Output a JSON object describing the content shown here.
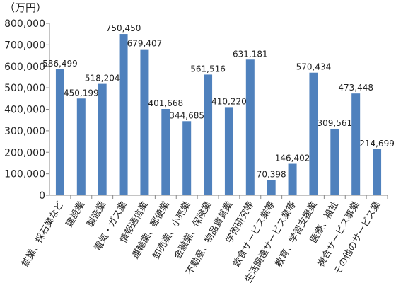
{
  "chart_data": {
    "type": "bar",
    "unit_label": "（万円）",
    "categories": [
      "鉱業、採石業など",
      "建設業",
      "製造業",
      "電気・ガス業",
      "情報通信業",
      "運輸業、郵便業",
      "卸売業、小売業",
      "金融業、保険業",
      "不動産、物品賃貸業",
      "学術研究等",
      "飲食サービス業等",
      "生活関連サービス業等",
      "教育、学習支援業",
      "医療、福祉",
      "複合サービス事業",
      "その他のサービス業"
    ],
    "values": [
      586499,
      450199,
      518204,
      750450,
      679407,
      401668,
      344685,
      561516,
      410220,
      631181,
      70398,
      146402,
      570434,
      309561,
      473448,
      214699
    ],
    "value_labels": [
      "586,499",
      "450,199",
      "518,204",
      "750,450",
      "679,407",
      "401,668",
      "344,685",
      "561,516",
      "410,220",
      "631,181",
      "70,398",
      "146,402",
      "570,434",
      "309,561",
      "473,448",
      "214,699"
    ],
    "y_ticks": [
      0,
      100000,
      200000,
      300000,
      400000,
      500000,
      600000,
      700000,
      800000
    ],
    "y_tick_labels": [
      "0",
      "100,000",
      "200,000",
      "300,000",
      "400,000",
      "500,000",
      "600,000",
      "700,000",
      "800,000"
    ],
    "ylim": [
      0,
      800000
    ],
    "grid": false,
    "legend": "none",
    "bar_color": "#4f81bd"
  }
}
